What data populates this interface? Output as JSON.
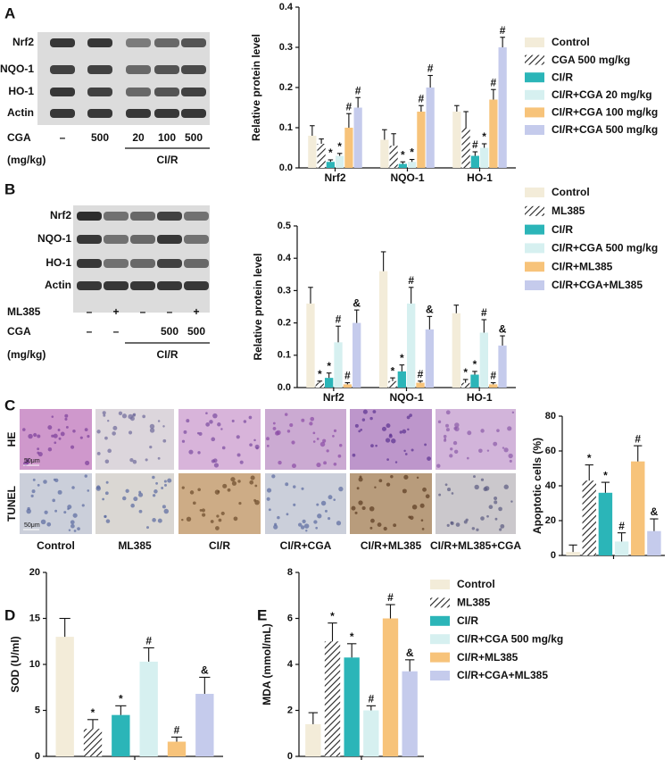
{
  "panels": [
    "A",
    "B",
    "C",
    "D",
    "E"
  ],
  "blot_a": {
    "rows": [
      "Nrf2",
      "NQO-1",
      "HO-1",
      "Actin"
    ],
    "treatments": [
      {
        "label": "CGA",
        "marks": [
          "–",
          "500",
          "20",
          "100",
          "500"
        ]
      }
    ],
    "unit": "(mg/kg)",
    "group": "CI/R"
  },
  "blot_b": {
    "rows": [
      "Nrf2",
      "NQO-1",
      "HO-1",
      "Actin"
    ],
    "treatments": [
      {
        "label": "ML385",
        "marks": [
          "–",
          "+",
          "–",
          "–",
          "+"
        ]
      },
      {
        "label": "CGA",
        "marks": [
          "–",
          "–",
          null,
          "500",
          "500"
        ]
      }
    ],
    "unit": "(mg/kg)",
    "group": "CI/R"
  },
  "histology": {
    "rows": [
      "HE",
      "TUNEL"
    ],
    "scale": "50μm",
    "columns": [
      "Control",
      "ML385",
      "CI/R",
      "CI/R+CGA",
      "CI/R+ML385",
      "CI/R+ML385+CGA"
    ]
  },
  "chart_data": [
    {
      "type": "bar",
      "y_label": "Relative protein level",
      "categories": [
        "Nrf2",
        "NQO-1",
        "HO-1"
      ],
      "ylim": [
        0,
        0.4
      ],
      "yticks": [
        {
          "value": 0,
          "label": "0.0"
        },
        0.1,
        0.2,
        0.3,
        0.4
      ],
      "legend": "right",
      "series": [
        {
          "name": "Control",
          "color": "#f3ecd9",
          "values": [
            0.08,
            0.07,
            0.14
          ],
          "errors": [
            0.025,
            0.025,
            0.015
          ],
          "markers": [
            null,
            null,
            null
          ]
        },
        {
          "name": "CGA 500 mg/kg",
          "color": "#222222",
          "pattern": "hatch",
          "values": [
            0.06,
            0.055,
            0.1
          ],
          "errors": [
            0.012,
            0.03,
            0.04
          ],
          "markers": [
            null,
            null,
            null
          ]
        },
        {
          "name": "CI/R",
          "color": "#2bb5b8",
          "values": [
            0.015,
            0.01,
            0.03
          ],
          "errors": [
            0.005,
            0.005,
            0.01
          ],
          "markers": [
            "*",
            "*",
            "#"
          ]
        },
        {
          "name": "CI/R+CGA 20 mg/kg",
          "color": "#d6f0f0",
          "values": [
            0.03,
            0.015,
            0.05
          ],
          "errors": [
            0.006,
            0.006,
            0.01
          ],
          "markers": [
            "*",
            "*",
            "*"
          ]
        },
        {
          "name": "CI/R+CGA 100 mg/kg",
          "color": "#f7c37a",
          "values": [
            0.1,
            0.14,
            0.17
          ],
          "errors": [
            0.035,
            0.015,
            0.025
          ],
          "markers": [
            "#",
            "#",
            "#"
          ]
        },
        {
          "name": "CI/R+CGA 500 mg/kg",
          "color": "#c5cbec",
          "values": [
            0.15,
            0.2,
            0.3
          ],
          "errors": [
            0.025,
            0.03,
            0.025
          ],
          "markers": [
            "#",
            "#",
            "#"
          ]
        }
      ]
    },
    {
      "type": "bar",
      "y_label": "Relative protein level",
      "categories": [
        "Nrf2",
        "NQO-1",
        "HO-1"
      ],
      "ylim": [
        0,
        0.5
      ],
      "yticks": [
        {
          "value": 0,
          "label": "0.0"
        },
        0.1,
        0.2,
        0.3,
        0.4,
        0.5
      ],
      "legend": "right",
      "series": [
        {
          "name": "Control",
          "color": "#f3ecd9",
          "values": [
            0.26,
            0.36,
            0.23
          ],
          "errors": [
            0.05,
            0.06,
            0.025
          ],
          "markers": [
            null,
            null,
            null
          ]
        },
        {
          "name": "ML385",
          "color": "#222222",
          "pattern": "hatch",
          "values": [
            0.015,
            0.02,
            0.015
          ],
          "errors": [
            0.005,
            0.01,
            0.01
          ],
          "markers": [
            "*",
            "*",
            "*"
          ]
        },
        {
          "name": "CI/R",
          "color": "#2bb5b8",
          "values": [
            0.03,
            0.05,
            0.04
          ],
          "errors": [
            0.015,
            0.02,
            0.01
          ],
          "markers": [
            "*",
            "*",
            "*"
          ]
        },
        {
          "name": "CI/R+CGA 500 mg/kg",
          "color": "#d6f0f0",
          "values": [
            0.14,
            0.26,
            0.17
          ],
          "errors": [
            0.05,
            0.05,
            0.04
          ],
          "markers": [
            "#",
            "#",
            "#"
          ]
        },
        {
          "name": "CI/R+ML385",
          "color": "#f7c37a",
          "values": [
            0.01,
            0.015,
            0.01
          ],
          "errors": [
            0.005,
            0.005,
            0.005
          ],
          "markers": [
            "#",
            "#",
            "#"
          ]
        },
        {
          "name": "CI/R+CGA+ML385",
          "color": "#c5cbec",
          "values": [
            0.2,
            0.18,
            0.13
          ],
          "errors": [
            0.04,
            0.04,
            0.03
          ],
          "markers": [
            "&",
            "&",
            "&"
          ]
        }
      ]
    },
    {
      "type": "bar",
      "y_label": "Apoptotic cells (%)",
      "ylim": [
        0,
        80
      ],
      "yticks": [
        0,
        20,
        40,
        60,
        80
      ],
      "values": [
        2,
        43,
        36,
        8,
        54,
        14
      ],
      "errors": [
        4,
        9,
        6,
        5,
        9,
        7
      ],
      "markers": [
        null,
        "*",
        "*",
        "#",
        "#",
        "&"
      ],
      "colors": [
        "#f3ecd9",
        "#222222",
        "#2bb5b8",
        "#d6f0f0",
        "#f7c37a",
        "#c5cbec"
      ],
      "hatch": [
        false,
        true,
        false,
        false,
        false,
        false
      ]
    },
    {
      "type": "bar",
      "y_label": "SOD (U/ml)",
      "ylim": [
        0,
        20
      ],
      "yticks": [
        0,
        5,
        10,
        15,
        20
      ],
      "values": [
        13,
        3,
        4.5,
        10.3,
        1.6,
        6.8
      ],
      "errors": [
        2,
        1,
        1,
        1.5,
        0.5,
        1.8
      ],
      "markers": [
        null,
        "*",
        "*",
        "#",
        "#",
        "&"
      ],
      "colors": [
        "#f3ecd9",
        "#222222",
        "#2bb5b8",
        "#d6f0f0",
        "#f7c37a",
        "#c5cbec"
      ],
      "hatch": [
        false,
        true,
        false,
        false,
        false,
        false
      ]
    },
    {
      "type": "bar",
      "y_label": "MDA (mmol/mL)",
      "ylim": [
        0,
        8
      ],
      "yticks": [
        0,
        2,
        4,
        6,
        8
      ],
      "legend": "right",
      "series": [
        {
          "name": "Control",
          "color": "#f3ecd9",
          "values": [
            1.4
          ],
          "errors": [
            0.5
          ],
          "markers": [
            null
          ]
        },
        {
          "name": "ML385",
          "color": "#222222",
          "pattern": "hatch",
          "values": [
            5.0
          ],
          "errors": [
            0.8
          ],
          "markers": [
            "*"
          ]
        },
        {
          "name": "CI/R",
          "color": "#2bb5b8",
          "values": [
            4.3
          ],
          "errors": [
            0.6
          ],
          "markers": [
            "*"
          ]
        },
        {
          "name": "CI/R+CGA 500 mg/kg",
          "color": "#d6f0f0",
          "values": [
            2.0
          ],
          "errors": [
            0.2
          ],
          "markers": [
            "#"
          ]
        },
        {
          "name": "CI/R+ML385",
          "color": "#f7c37a",
          "values": [
            6.0
          ],
          "errors": [
            0.6
          ],
          "markers": [
            "#"
          ]
        },
        {
          "name": "CI/R+CGA+ML385",
          "color": "#c5cbec",
          "values": [
            3.7
          ],
          "errors": [
            0.5
          ],
          "markers": [
            "&"
          ]
        }
      ]
    }
  ]
}
